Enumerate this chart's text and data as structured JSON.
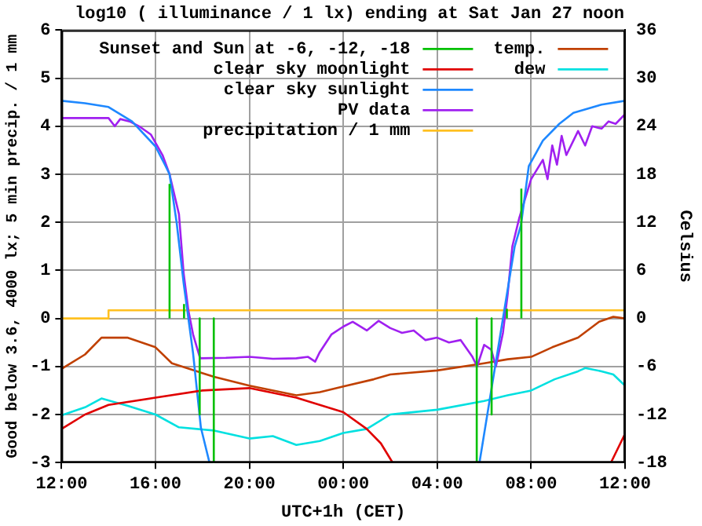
{
  "chart_data": {
    "type": "line",
    "title": "log10 ( illuminance / 1 lx) ending at Sat Jan 27 noon",
    "xlabel": "UTC+1h (CET)",
    "ylabel": "Good below 3.6, 4000 lx; 5 min precip. / 1 mm",
    "y2label": "Celsius",
    "xlim": [
      "--01-26T12:00",
      "--01-27T12:00"
    ],
    "xticks": [
      {
        "value": "--01-26T12:00",
        "label": "12:00"
      },
      {
        "value": "--01-26T16:00",
        "label": "16:00"
      },
      {
        "value": "--01-26T20:00",
        "label": "20:00"
      },
      {
        "value": "--01-27T00:00",
        "label": "00:00"
      },
      {
        "value": "--01-27T04:00",
        "label": "04:00"
      },
      {
        "value": "--01-27T08:00",
        "label": "08:00"
      },
      {
        "value": "--01-27T12:00",
        "label": "12:00"
      }
    ],
    "ylim": [
      -3,
      6
    ],
    "yticks": [
      -3,
      -2,
      -1,
      0,
      1,
      2,
      3,
      4,
      5,
      6
    ],
    "y2lim": [
      -18,
      36
    ],
    "y2ticks": [
      -18,
      -12,
      -6,
      0,
      6,
      12,
      18,
      24,
      30,
      36
    ],
    "grid": true,
    "legend": "top left",
    "marker": "none",
    "line_style": "solid",
    "series": [
      {
        "name": "Sunset and Sun at -6, -12, -18",
        "color": "#00c000",
        "x": [
          "--01-26T16:36",
          "--01-26T16:36",
          null,
          "--01-26T17:13",
          "--01-26T17:13",
          null,
          "--01-26T17:53",
          "--01-26T17:53",
          null,
          "--01-26T18:29",
          "--01-26T18:29",
          null,
          "--01-27T05:41",
          "--01-27T05:41",
          null,
          "--01-27T06:19",
          "--01-27T06:19",
          null,
          "--01-27T06:58",
          "--01-27T06:58",
          null,
          "--01-27T07:35",
          "--01-27T07:35"
        ],
        "values": [
          0,
          2.8,
          null,
          0,
          0.3,
          null,
          0,
          -2,
          null,
          0,
          -3,
          null,
          0,
          -3,
          null,
          0,
          -2,
          null,
          0,
          0.2,
          null,
          0,
          2.7
        ]
      },
      {
        "name": "clear sky moonlight",
        "color": "#e00000",
        "x": [
          "--01-26T12:00",
          "--01-26T13:00",
          "--01-26T14:00",
          "--01-26T16:00",
          "--01-26T18:00",
          "--01-26T20:00",
          "--01-26T22:00",
          "--01-27T00:00",
          "--01-27T01:00",
          "--01-27T01:36",
          "--01-27T02:06",
          null,
          "--01-27T11:24",
          "--01-27T12:00"
        ],
        "values": [
          -2.3,
          -2.0,
          -1.8,
          -1.65,
          -1.5,
          -1.45,
          -1.65,
          -1.95,
          -2.3,
          -2.6,
          -3,
          null,
          -3,
          -2.4
        ]
      },
      {
        "name": "clear sky sunlight",
        "color": "#1e88ff",
        "x": [
          "--01-26T12:00",
          "--01-26T13:00",
          "--01-26T14:00",
          "--01-26T15:00",
          "--01-26T16:00",
          "--01-26T16:24",
          "--01-26T16:36",
          "--01-26T16:54",
          "--01-26T17:12",
          "--01-26T17:36",
          "--01-26T17:56",
          "--01-26T18:18",
          null,
          "--01-27T05:48",
          "--01-27T06:18",
          "--01-27T06:48",
          "--01-27T07:18",
          "--01-27T07:34",
          "--01-27T07:54",
          "--01-27T08:30",
          "--01-27T09:12",
          "--01-27T09:48",
          "--01-27T11:00",
          "--01-27T12:00"
        ],
        "values": [
          4.53,
          4.48,
          4.4,
          4.1,
          3.58,
          3.2,
          3.0,
          2.0,
          0.73,
          -0.72,
          -2.27,
          -3,
          null,
          -3,
          -1.5,
          0,
          1.5,
          1.94,
          3.17,
          3.7,
          4.05,
          4.28,
          4.45,
          4.53
        ]
      },
      {
        "name": "PV data",
        "color": "#a020f0",
        "x": [
          "--01-26T12:00",
          "--01-26T13:00",
          "--01-26T14:00",
          "--01-26T14:16",
          "--01-26T14:30",
          "--01-26T14:54",
          "--01-26T15:18",
          "--01-26T15:48",
          "--01-26T16:18",
          "--01-26T16:36",
          "--01-26T17:00",
          "--01-26T17:12",
          "--01-26T17:24",
          "--01-26T17:36",
          "--01-26T17:54",
          "--01-26T19:00",
          "--01-26T20:00",
          "--01-26T21:00",
          "--01-26T22:00",
          "--01-26T22:30",
          "--01-26T22:48",
          "--01-26T23:00",
          "--01-26T23:30",
          "--01-27T00:00",
          "--01-27T00:24",
          "--01-27T01:00",
          "--01-27T01:30",
          "--01-27T02:00",
          "--01-27T02:30",
          "--01-27T03:00",
          "--01-27T03:30",
          "--01-27T04:00",
          "--01-27T04:30",
          "--01-27T05:00",
          "--01-27T05:30",
          "--01-27T05:42",
          "--01-27T06:00",
          "--01-27T06:18",
          "--01-27T06:30",
          "--01-27T06:48",
          "--01-27T07:00",
          "--01-27T07:12",
          "--01-27T07:30",
          "--01-27T08:00",
          "--01-27T08:30",
          "--01-27T08:42",
          "--01-27T08:54",
          "--01-27T09:06",
          "--01-27T09:18",
          "--01-27T09:30",
          "--01-27T09:48",
          "--01-27T10:00",
          "--01-27T10:18",
          "--01-27T10:36",
          "--01-27T11:00",
          "--01-27T11:18",
          "--01-27T11:36",
          "--01-27T12:00"
        ],
        "values": [
          4.17,
          4.17,
          4.17,
          4.0,
          4.15,
          4.1,
          4.0,
          3.83,
          3.4,
          3.0,
          2.17,
          0.94,
          0.17,
          -0.33,
          -0.83,
          -0.82,
          -0.8,
          -0.84,
          -0.83,
          -0.8,
          -0.9,
          -0.7,
          -0.33,
          -0.17,
          -0.07,
          -0.25,
          -0.05,
          -0.2,
          -0.3,
          -0.25,
          -0.45,
          -0.4,
          -0.5,
          -0.45,
          -0.8,
          -1.0,
          -0.55,
          -0.65,
          -1.0,
          -0.3,
          0.5,
          1.5,
          2.1,
          2.9,
          3.3,
          2.9,
          3.6,
          3.2,
          3.8,
          3.4,
          3.7,
          3.9,
          3.6,
          4.0,
          3.95,
          4.1,
          4.05,
          4.25
        ]
      },
      {
        "name": "precipitation / 1 mm",
        "color": "#ffc020",
        "x": [
          "--01-26T12:00",
          "--01-26T14:00",
          "--01-26T14:00",
          "--01-27T12:00"
        ],
        "values": [
          0,
          0,
          0.17,
          0.17
        ]
      },
      {
        "name": "temp.",
        "color": "#c04000",
        "axis": "y2",
        "x": [
          "--01-26T12:00",
          "--01-26T13:00",
          "--01-26T13:42",
          "--01-26T14:48",
          "--01-26T16:00",
          "--01-26T16:42",
          "--01-26T18:30",
          "--01-26T20:00",
          "--01-26T22:00",
          "--01-26T23:00",
          "--01-27T00:00",
          "--01-27T01:18",
          "--01-27T02:00",
          "--01-27T04:00",
          "--01-27T06:00",
          "--01-27T07:00",
          "--01-27T08:00",
          "--01-27T08:54",
          "--01-27T10:00",
          "--01-27T10:54",
          "--01-27T11:30",
          "--01-27T12:00"
        ],
        "values": [
          -6.3,
          -4.5,
          -2.4,
          -2.4,
          -3.6,
          -5.6,
          -7.3,
          -8.4,
          -9.6,
          -9.2,
          -8.5,
          -7.6,
          -7.0,
          -6.5,
          -5.6,
          -5.1,
          -4.8,
          -3.6,
          -2.4,
          -0.4,
          0.2,
          0
        ]
      },
      {
        "name": "dew",
        "color": "#00e0e0",
        "axis": "y2",
        "x": [
          "--01-26T12:00",
          "--01-26T13:00",
          "--01-26T13:42",
          "--01-26T14:48",
          "--01-26T16:00",
          "--01-26T17:00",
          "--01-26T18:30",
          "--01-26T20:00",
          "--01-26T21:00",
          "--01-26T22:00",
          "--01-26T23:00",
          "--01-27T00:00",
          "--01-27T01:00",
          "--01-27T02:00",
          "--01-27T04:00",
          "--01-27T06:00",
          "--01-27T07:00",
          "--01-27T08:00",
          "--01-27T09:00",
          "--01-27T10:00",
          "--01-27T10:18",
          "--01-27T11:00",
          "--01-27T11:30",
          "--01-27T12:00"
        ],
        "values": [
          -12.1,
          -11.1,
          -10,
          -10.9,
          -12,
          -13.6,
          -14,
          -15,
          -14.7,
          -15.8,
          -15.3,
          -14.3,
          -13.8,
          -12,
          -11.4,
          -10.3,
          -9.6,
          -9,
          -7.6,
          -6.6,
          -6.2,
          -6.6,
          -7,
          -8.4
        ]
      }
    ]
  }
}
